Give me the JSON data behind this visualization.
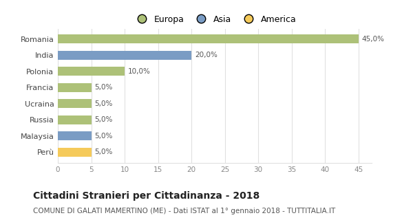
{
  "categories": [
    "Romania",
    "India",
    "Polonia",
    "Francia",
    "Ucraina",
    "Russia",
    "Malaysia",
    "Perù"
  ],
  "values": [
    45.0,
    20.0,
    10.0,
    5.0,
    5.0,
    5.0,
    5.0,
    5.0
  ],
  "labels": [
    "45,0%",
    "20,0%",
    "10,0%",
    "5,0%",
    "5,0%",
    "5,0%",
    "5,0%",
    "5,0%"
  ],
  "colors": [
    "#adc178",
    "#7a9cc4",
    "#adc178",
    "#adc178",
    "#adc178",
    "#adc178",
    "#7a9cc4",
    "#f5ca5a"
  ],
  "legend_labels": [
    "Europa",
    "Asia",
    "America"
  ],
  "legend_colors": [
    "#adc178",
    "#7a9cc4",
    "#f5ca5a"
  ],
  "xlim": [
    0,
    47
  ],
  "xticks": [
    0,
    5,
    10,
    15,
    20,
    25,
    30,
    35,
    40,
    45
  ],
  "title": "Cittadini Stranieri per Cittadinanza - 2018",
  "subtitle": "COMUNE DI GALATI MAMERTINO (ME) - Dati ISTAT al 1° gennaio 2018 - TUTTITALIA.IT",
  "background_color": "#ffffff",
  "grid_color": "#e0e0e0",
  "bar_height": 0.55,
  "label_fontsize": 7.5,
  "ytick_fontsize": 8,
  "xtick_fontsize": 7.5,
  "title_fontsize": 10,
  "subtitle_fontsize": 7.5
}
